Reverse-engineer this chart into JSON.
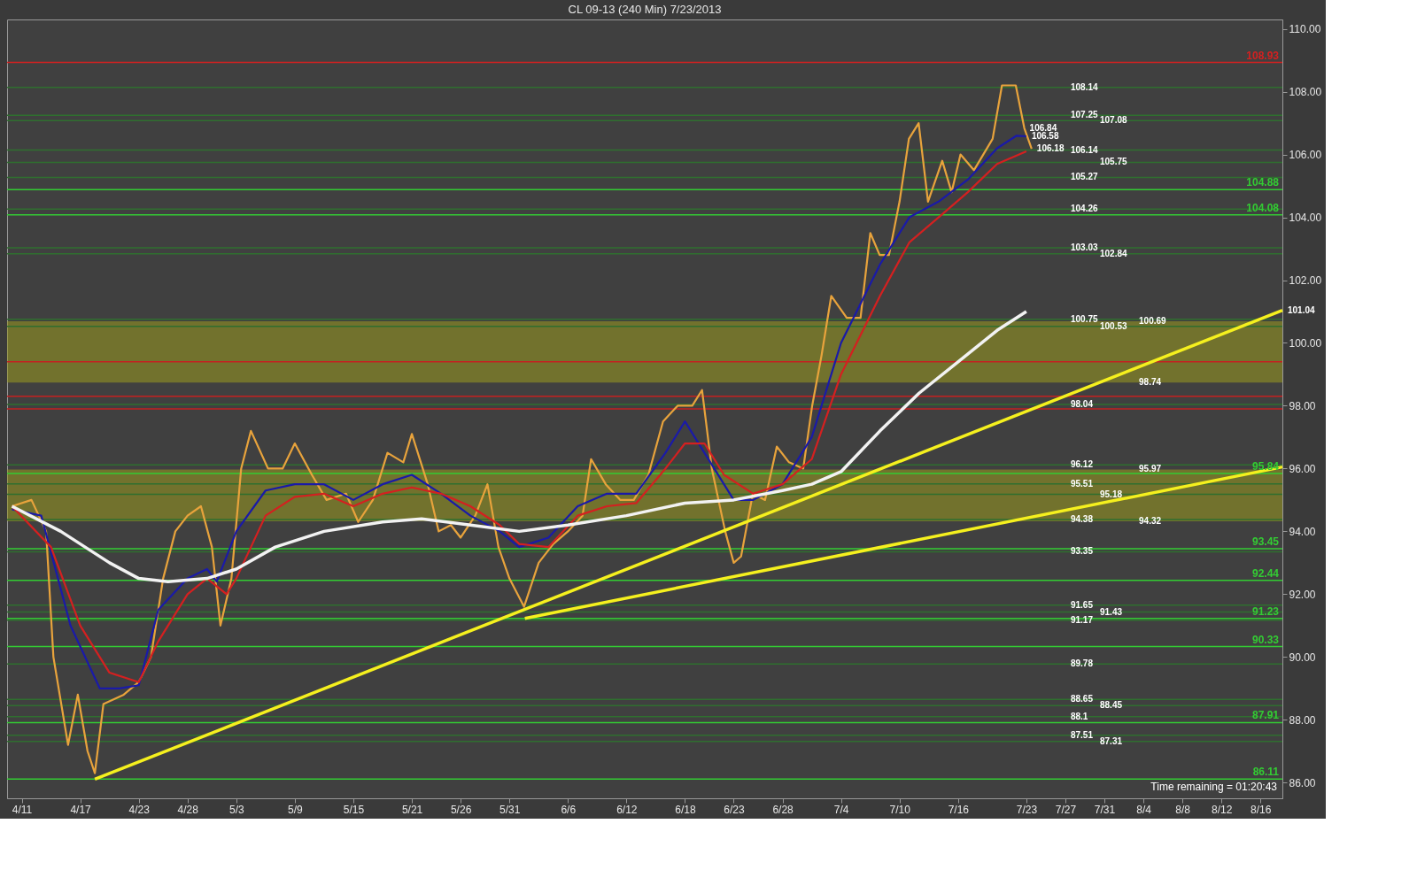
{
  "chart_data": {
    "type": "line",
    "title": "CL 09-13 (240 Min)  7/23/2013",
    "xlim": [
      "2013-04-09T12:00",
      "2013-08-18T06:00"
    ],
    "xticks": [
      {
        "value": "2013-04-11",
        "label": "4/11"
      },
      {
        "value": "2013-04-17",
        "label": "4/17"
      },
      {
        "value": "2013-04-23",
        "label": "4/23"
      },
      {
        "value": "2013-04-28",
        "label": "4/28"
      },
      {
        "value": "2013-05-03",
        "label": "5/3"
      },
      {
        "value": "2013-05-09",
        "label": "5/9"
      },
      {
        "value": "2013-05-15",
        "label": "5/15"
      },
      {
        "value": "2013-05-21",
        "label": "5/21"
      },
      {
        "value": "2013-05-26",
        "label": "5/26"
      },
      {
        "value": "2013-05-31",
        "label": "5/31"
      },
      {
        "value": "2013-06-06",
        "label": "6/6"
      },
      {
        "value": "2013-06-12",
        "label": "6/12"
      },
      {
        "value": "2013-06-18",
        "label": "6/18"
      },
      {
        "value": "2013-06-23",
        "label": "6/23"
      },
      {
        "value": "2013-06-28",
        "label": "6/28"
      },
      {
        "value": "2013-07-04",
        "label": "7/4"
      },
      {
        "value": "2013-07-10",
        "label": "7/10"
      },
      {
        "value": "2013-07-16",
        "label": "7/16"
      },
      {
        "value": "2013-07-23",
        "label": "7/23"
      },
      {
        "value": "2013-07-27",
        "label": "7/27"
      },
      {
        "value": "2013-07-31",
        "label": "7/31"
      },
      {
        "value": "2013-08-04",
        "label": "8/4"
      },
      {
        "value": "2013-08-08",
        "label": "8/8"
      },
      {
        "value": "2013-08-12",
        "label": "8/12"
      },
      {
        "value": "2013-08-16",
        "label": "8/16"
      }
    ],
    "ylim": [
      85.5,
      110.3
    ],
    "yticks": [
      {
        "value": 86,
        "label": "86.00"
      },
      {
        "value": 88,
        "label": "88.00"
      },
      {
        "value": 90,
        "label": "90.00"
      },
      {
        "value": 92,
        "label": "92.00"
      },
      {
        "value": 94,
        "label": "94.00"
      },
      {
        "value": 96,
        "label": "96.00"
      },
      {
        "value": 98,
        "label": "98.00"
      },
      {
        "value": 100,
        "label": "100.00"
      },
      {
        "value": 102,
        "label": "102.00"
      },
      {
        "value": 104,
        "label": "104.00"
      },
      {
        "value": 106,
        "label": "106.00"
      },
      {
        "value": 108,
        "label": "108.00"
      },
      {
        "value": 110,
        "label": "110.00"
      }
    ],
    "grid": false,
    "line_style": "solid",
    "marker": "none",
    "series": [
      {
        "color": "#e8a33c",
        "x": [
          "2013-04-10T00:00",
          "2013-04-12T00:00",
          "2013-04-13T12:00",
          "2013-04-14T06:00",
          "2013-04-15T18:00",
          "2013-04-16T18:00",
          "2013-04-17T18:00",
          "2013-04-18T12:00",
          "2013-04-19T09:00",
          "2013-04-21T11:00",
          "2013-04-23T00:00",
          "2013-04-24T06:00",
          "2013-04-25T12:00",
          "2013-04-26T18:00",
          "2013-04-28T00:00",
          "2013-04-29T09:00",
          "2013-04-30T12:00",
          "2013-05-01T09:00",
          "2013-05-02T12:00",
          "2013-05-03T12:00",
          "2013-05-04T12:00",
          "2013-05-06T06:00",
          "2013-05-07T18:00",
          "2013-05-09T00:00",
          "2013-05-10T18:00",
          "2013-05-12T06:00",
          "2013-05-14T06:00",
          "2013-05-15T12:00",
          "2013-05-17T00:00",
          "2013-05-18T12:00",
          "2013-05-20T03:00",
          "2013-05-21T00:00",
          "2013-05-22T15:00",
          "2013-05-23T18:00",
          "2013-05-25T00:00",
          "2013-05-26T00:00",
          "2013-05-27T12:00",
          "2013-05-28T18:00",
          "2013-05-29T21:00",
          "2013-05-31T00:00",
          "2013-06-01T12:00",
          "2013-06-03T00:00",
          "2013-06-04T12:00",
          "2013-06-06T00:00",
          "2013-06-07T12:00",
          "2013-06-08T09:00",
          "2013-06-09T21:00",
          "2013-06-11T09:00",
          "2013-06-12T18:00",
          "2013-06-14T06:00",
          "2013-06-15T18:00",
          "2013-06-17T06:00",
          "2013-06-18T18:00",
          "2013-06-19T18:00",
          "2013-06-20T18:00",
          "2013-06-22T03:00",
          "2013-06-23T00:00",
          "2013-06-23T18:00",
          "2013-06-24T23:00",
          "2013-06-26T05:00",
          "2013-06-27T10:00",
          "2013-06-28T16:00",
          "2013-06-30T03:00",
          "2013-07-01T01:00",
          "2013-07-02T00:00",
          "2013-07-03T00:00",
          "2013-07-04T14:00",
          "2013-07-06T00:00",
          "2013-07-07T00:00",
          "2013-07-07T23:00",
          "2013-07-08T22:00",
          "2013-07-10T00:00",
          "2013-07-10T23:00",
          "2013-07-11T23:00",
          "2013-07-12T22:00",
          "2013-07-14T09:00",
          "2013-07-15T08:00",
          "2013-07-16T06:00",
          "2013-07-17T15:00",
          "2013-07-19T13:00",
          "2013-07-20T12:00",
          "2013-07-21T22:00",
          "2013-07-22T19:00",
          "2013-07-23T13:00"
        ],
        "values": [
          94.8,
          95.0,
          94.0,
          90.0,
          87.2,
          88.8,
          87.0,
          86.3,
          88.5,
          88.8,
          89.2,
          90.0,
          92.5,
          94.0,
          94.5,
          94.8,
          93.5,
          91.0,
          92.5,
          96.0,
          97.2,
          96.0,
          96.0,
          96.8,
          95.8,
          95.0,
          95.2,
          94.3,
          95.0,
          96.5,
          96.2,
          97.1,
          95.5,
          94.0,
          94.2,
          93.8,
          94.5,
          95.5,
          93.5,
          92.5,
          91.6,
          93.0,
          93.6,
          94.0,
          94.5,
          96.3,
          95.5,
          95.0,
          95.0,
          95.8,
          97.5,
          98.0,
          98.0,
          98.5,
          96.0,
          94.0,
          93.0,
          93.2,
          95.2,
          95.0,
          96.7,
          96.2,
          96.0,
          98.0,
          99.6,
          101.5,
          100.8,
          100.8,
          103.5,
          102.8,
          102.8,
          104.5,
          106.5,
          107.0,
          104.5,
          105.8,
          104.8,
          106.0,
          105.5,
          106.5,
          108.2,
          108.2,
          106.84,
          106.18
        ]
      },
      {
        "color": "#1a1aa8",
        "x": [
          "2013-04-10",
          "2013-04-13",
          "2013-04-16",
          "2013-04-19",
          "2013-04-21",
          "2013-04-23",
          "2013-04-25",
          "2013-04-28",
          "2013-04-30",
          "2013-05-01",
          "2013-05-03",
          "2013-05-06",
          "2013-05-09",
          "2013-05-12",
          "2013-05-15",
          "2013-05-18",
          "2013-05-21",
          "2013-05-24",
          "2013-05-27",
          "2013-05-30",
          "2013-06-01",
          "2013-06-04",
          "2013-06-07",
          "2013-06-10",
          "2013-06-13",
          "2013-06-16",
          "2013-06-18",
          "2013-06-20",
          "2013-06-23",
          "2013-06-25",
          "2013-06-28",
          "2013-07-01",
          "2013-07-04",
          "2013-07-08",
          "2013-07-11",
          "2013-07-14",
          "2013-07-17",
          "2013-07-20",
          "2013-07-22",
          "2013-07-23"
        ],
        "values": [
          94.7,
          94.5,
          91.0,
          89.0,
          89.0,
          89.1,
          91.5,
          92.5,
          92.8,
          92.4,
          94.0,
          95.3,
          95.5,
          95.5,
          95.0,
          95.5,
          95.8,
          95.2,
          94.5,
          94.0,
          93.5,
          93.8,
          94.8,
          95.2,
          95.2,
          96.5,
          97.5,
          96.5,
          95.0,
          95.0,
          95.5,
          97.0,
          100.0,
          102.5,
          104.0,
          104.5,
          105.2,
          106.2,
          106.6,
          106.58
        ]
      },
      {
        "color": "#d42020",
        "x": [
          "2013-04-10",
          "2013-04-14",
          "2013-04-17",
          "2013-04-20",
          "2013-04-23",
          "2013-04-25",
          "2013-04-28",
          "2013-04-30",
          "2013-05-02",
          "2013-05-03",
          "2013-05-06",
          "2013-05-09",
          "2013-05-12",
          "2013-05-15",
          "2013-05-18",
          "2013-05-21",
          "2013-05-24",
          "2013-05-27",
          "2013-05-30",
          "2013-06-01",
          "2013-06-04",
          "2013-06-07",
          "2013-06-10",
          "2013-06-13",
          "2013-06-16",
          "2013-06-18",
          "2013-06-20",
          "2013-06-22",
          "2013-06-25",
          "2013-06-28",
          "2013-07-01",
          "2013-07-04",
          "2013-07-08",
          "2013-07-11",
          "2013-07-14",
          "2013-07-17",
          "2013-07-20",
          "2013-07-23"
        ],
        "values": [
          94.8,
          93.5,
          91.0,
          89.5,
          89.2,
          90.5,
          92.0,
          92.5,
          92.0,
          92.5,
          94.5,
          95.1,
          95.2,
          94.8,
          95.2,
          95.4,
          95.2,
          94.8,
          94.2,
          93.6,
          93.5,
          94.5,
          94.8,
          94.9,
          96.0,
          96.8,
          96.8,
          95.8,
          95.2,
          95.5,
          96.3,
          99.0,
          101.5,
          103.2,
          104.0,
          104.8,
          105.7,
          106.1
        ]
      },
      {
        "color": "#f2f2f2",
        "x": [
          "2013-04-10",
          "2013-04-15",
          "2013-04-20",
          "2013-04-23",
          "2013-04-26",
          "2013-04-30",
          "2013-05-03",
          "2013-05-07",
          "2013-05-12",
          "2013-05-18",
          "2013-05-22",
          "2013-05-27",
          "2013-06-01",
          "2013-06-06",
          "2013-06-12",
          "2013-06-18",
          "2013-06-23",
          "2013-06-28",
          "2013-07-01",
          "2013-07-04",
          "2013-07-08",
          "2013-07-12",
          "2013-07-16",
          "2013-07-20",
          "2013-07-23"
        ],
        "values": [
          94.8,
          94.0,
          93.0,
          92.5,
          92.4,
          92.5,
          92.8,
          93.5,
          94.0,
          94.3,
          94.4,
          94.2,
          94.0,
          94.2,
          94.5,
          94.9,
          95.0,
          95.3,
          95.5,
          95.9,
          97.2,
          98.4,
          99.4,
          100.4,
          101.0
        ]
      },
      {
        "color": "#f5f01e",
        "x": [
          "2013-04-18T12:00",
          "2013-08-18T06:00"
        ],
        "values": [
          86.11,
          101.04
        ]
      },
      {
        "color": "#f5f01e",
        "x": [
          "2013-06-01T14:00",
          "2013-08-18T06:00"
        ],
        "values": [
          91.23,
          96.05
        ]
      }
    ],
    "ref_lines": [
      {
        "axis": "y",
        "value": 108.93,
        "label": "108.93",
        "color": "#d42020"
      },
      {
        "axis": "y",
        "value": 104.88,
        "label": "104.88",
        "color": "#33cc33"
      },
      {
        "axis": "y",
        "value": 104.08,
        "label": "104.08",
        "color": "#33cc33"
      },
      {
        "axis": "y",
        "value": 99.4,
        "color": "#c42020"
      },
      {
        "axis": "y",
        "value": 98.3,
        "color": "#c42020"
      },
      {
        "axis": "y",
        "value": 97.9,
        "color": "#c42020"
      },
      {
        "axis": "y",
        "value": 95.84,
        "label": "95.84",
        "color": "#33cc33"
      },
      {
        "axis": "y",
        "value": 93.45,
        "label": "93.45",
        "color": "#33cc33"
      },
      {
        "axis": "y",
        "value": 92.44,
        "label": "92.44",
        "color": "#33cc33"
      },
      {
        "axis": "y",
        "value": 91.23,
        "label": "91.23",
        "color": "#33cc33"
      },
      {
        "axis": "y",
        "value": 90.33,
        "label": "90.33",
        "color": "#33cc33"
      },
      {
        "axis": "y",
        "value": 87.91,
        "label": "87.91",
        "color": "#33cc33"
      },
      {
        "axis": "y",
        "value": 86.11,
        "label": "86.11",
        "color": "#33cc33"
      },
      {
        "axis": "y",
        "value": 108.14,
        "color": "#2f6f2f"
      },
      {
        "axis": "y",
        "value": 107.25,
        "color": "#2f6f2f"
      },
      {
        "axis": "y",
        "value": 107.08,
        "color": "#2f6f2f"
      },
      {
        "axis": "y",
        "value": 106.14,
        "color": "#2f6f2f"
      },
      {
        "axis": "y",
        "value": 105.75,
        "color": "#2f6f2f"
      },
      {
        "axis": "y",
        "value": 105.27,
        "color": "#2f6f2f"
      },
      {
        "axis": "y",
        "value": 104.26,
        "color": "#2f6f2f"
      },
      {
        "axis": "y",
        "value": 103.03,
        "color": "#2f6f2f"
      },
      {
        "axis": "y",
        "value": 102.84,
        "color": "#2f6f2f"
      },
      {
        "axis": "y",
        "value": 100.75,
        "color": "#2f6f2f"
      },
      {
        "axis": "y",
        "value": 100.53,
        "color": "#2f6f2f"
      },
      {
        "axis": "y",
        "value": 98.04,
        "color": "#2f6f2f"
      },
      {
        "axis": "y",
        "value": 96.12,
        "color": "#2f6f2f"
      },
      {
        "axis": "y",
        "value": 95.51,
        "color": "#2f6f2f"
      },
      {
        "axis": "y",
        "value": 95.18,
        "color": "#2f6f2f"
      },
      {
        "axis": "y",
        "value": 94.38,
        "color": "#2f6f2f"
      },
      {
        "axis": "y",
        "value": 93.35,
        "color": "#2f6f2f"
      },
      {
        "axis": "y",
        "value": 91.65,
        "color": "#2f6f2f"
      },
      {
        "axis": "y",
        "value": 91.43,
        "color": "#2f6f2f"
      },
      {
        "axis": "y",
        "value": 91.17,
        "color": "#2f6f2f"
      },
      {
        "axis": "y",
        "value": 89.78,
        "color": "#2f6f2f"
      },
      {
        "axis": "y",
        "value": 88.65,
        "color": "#2f6f2f"
      },
      {
        "axis": "y",
        "value": 88.45,
        "color": "#2f6f2f"
      },
      {
        "axis": "y",
        "value": 88.1,
        "color": "#2f6f2f"
      },
      {
        "axis": "y",
        "value": 87.51,
        "color": "#2f6f2f"
      },
      {
        "axis": "y",
        "value": 87.31,
        "color": "#2f6f2f"
      }
    ],
    "bands": [
      {
        "axis": "y",
        "from": 98.74,
        "to": 100.69,
        "color": "#9a9a1e"
      },
      {
        "axis": "y",
        "from": 94.32,
        "to": 95.97,
        "color": "#9a9a1e"
      }
    ],
    "annotations": [
      {
        "text": "100.69",
        "x": "2013-08-03",
        "y": 100.69
      },
      {
        "text": "98.74",
        "x": "2013-08-03",
        "y": 98.74
      },
      {
        "text": "95.97",
        "x": "2013-08-03",
        "y": 95.97
      },
      {
        "text": "94.32",
        "x": "2013-08-03",
        "y": 94.32
      },
      {
        "text": "108.14",
        "x": "2013-07-27",
        "y": 108.14
      },
      {
        "text": "107.25",
        "x": "2013-07-27",
        "y": 107.25
      },
      {
        "text": "107.08",
        "x": "2013-07-30",
        "y": 107.08
      },
      {
        "text": "106.14",
        "x": "2013-07-27",
        "y": 106.14
      },
      {
        "text": "105.75",
        "x": "2013-07-30",
        "y": 105.75
      },
      {
        "text": "105.27",
        "x": "2013-07-27",
        "y": 105.27
      },
      {
        "text": "104.26",
        "x": "2013-07-27",
        "y": 104.26
      },
      {
        "text": "103.03",
        "x": "2013-07-27",
        "y": 103.03
      },
      {
        "text": "102.84",
        "x": "2013-07-30",
        "y": 102.84
      },
      {
        "text": "100.75",
        "x": "2013-07-27",
        "y": 100.75
      },
      {
        "text": "100.53",
        "x": "2013-07-30",
        "y": 100.53
      },
      {
        "text": "98.04",
        "x": "2013-07-27",
        "y": 98.04
      },
      {
        "text": "96.12",
        "x": "2013-07-27",
        "y": 96.12
      },
      {
        "text": "95.51",
        "x": "2013-07-27",
        "y": 95.51
      },
      {
        "text": "95.18",
        "x": "2013-07-30",
        "y": 95.18
      },
      {
        "text": "94.38",
        "x": "2013-07-27",
        "y": 94.38
      },
      {
        "text": "93.35",
        "x": "2013-07-27",
        "y": 93.35
      },
      {
        "text": "91.65",
        "x": "2013-07-27",
        "y": 91.65
      },
      {
        "text": "91.43",
        "x": "2013-07-30",
        "y": 91.43
      },
      {
        "text": "91.17",
        "x": "2013-07-27",
        "y": 91.17
      },
      {
        "text": "89.78",
        "x": "2013-07-27",
        "y": 89.78
      },
      {
        "text": "88.65",
        "x": "2013-07-27",
        "y": 88.65
      },
      {
        "text": "88.45",
        "x": "2013-07-30",
        "y": 88.45
      },
      {
        "text": "88.1",
        "x": "2013-07-27",
        "y": 88.1
      },
      {
        "text": "87.51",
        "x": "2013-07-27",
        "y": 87.51
      },
      {
        "text": "87.31",
        "x": "2013-07-30",
        "y": 87.31
      },
      {
        "text": "106.84",
        "x": "2013-07-22T19:00",
        "y": 106.84
      },
      {
        "text": "106.58",
        "x": "2013-07-23",
        "y": 106.58
      },
      {
        "text": "106.18",
        "x": "2013-07-23T13:00",
        "y": 106.18
      },
      {
        "text": "101.04",
        "x": "2013-08-18T06:00",
        "y": 101.04
      },
      "Time remaining = 01:20:43"
    ]
  }
}
